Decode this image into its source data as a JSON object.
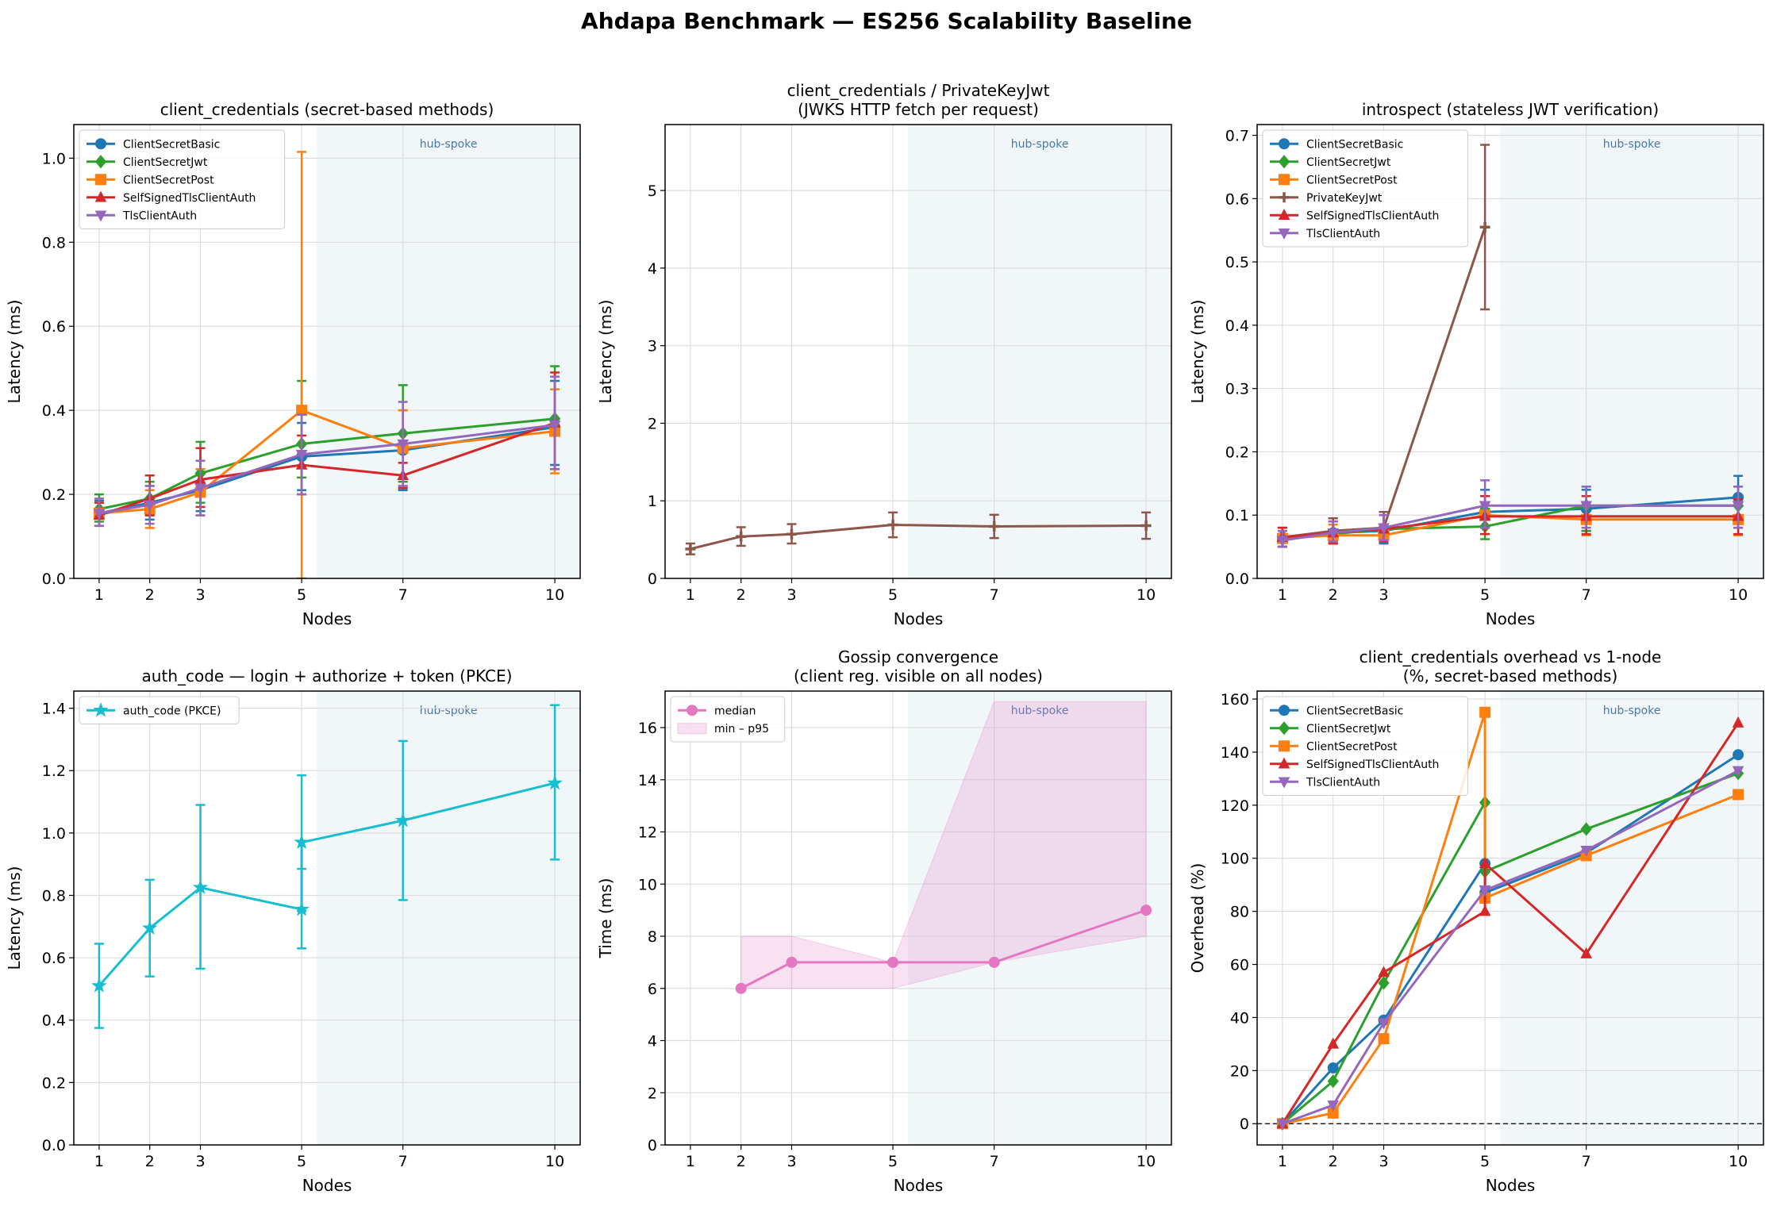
{
  "figure": {
    "title": "Ahdapa Benchmark — ES256 Scalability Baseline"
  },
  "colors": {
    "ClientSecretBasic": "#1f77b4",
    "ClientSecretJwt": "#2ca02c",
    "ClientSecretPost": "#ff7f0e",
    "SelfSignedTlsClientAuth": "#d62728",
    "TlsClientAuth": "#9467bd",
    "PrivateKeyJwt": "#8c564b",
    "auth_code": "#17becf",
    "gossip": "#e377c2",
    "region": "#e6eef3"
  },
  "chart_data": [
    {
      "type": "line",
      "title": "client_credentials (secret-based methods)",
      "xlabel": "Nodes",
      "ylabel": "Latency (ms)",
      "x": [
        1,
        2,
        3,
        5,
        7,
        10
      ],
      "xlim": [
        0.5,
        10.5
      ],
      "ylim": [
        0,
        1.08
      ],
      "yticks": [
        0.0,
        0.2,
        0.4,
        0.6,
        0.8,
        1.0
      ],
      "ytick_decimals": 1,
      "grid": true,
      "legend": "top-left",
      "region": {
        "from": 5.3,
        "to": 10.5,
        "label": "hub-spoke"
      },
      "series": [
        {
          "name": "ClientSecretBasic",
          "marker": "circle",
          "values": [
            0.155,
            0.18,
            0.21,
            0.29,
            0.305,
            0.36
          ],
          "err_low": [
            0.125,
            0.14,
            0.16,
            0.21,
            0.21,
            0.27
          ],
          "err_high": [
            0.185,
            0.22,
            0.26,
            0.37,
            0.4,
            0.47
          ]
        },
        {
          "name": "ClientSecretJwt",
          "marker": "diamond",
          "values": [
            0.165,
            0.19,
            0.25,
            0.32,
            0.345,
            0.38
          ],
          "err_low": [
            0.135,
            0.15,
            0.18,
            0.24,
            0.23,
            0.26
          ],
          "err_high": [
            0.2,
            0.23,
            0.325,
            0.47,
            0.46,
            0.505
          ]
        },
        {
          "name": "ClientSecretPost",
          "marker": "square",
          "values": [
            0.155,
            0.165,
            0.205,
            0.4,
            0.31,
            0.35
          ],
          "err_low": [
            0.125,
            0.12,
            0.15,
            0.0,
            0.22,
            0.25
          ],
          "err_high": [
            0.18,
            0.21,
            0.26,
            1.015,
            0.4,
            0.45
          ]
        },
        {
          "name": "SelfSignedTlsClientAuth",
          "marker": "triangle",
          "values": [
            0.15,
            0.19,
            0.235,
            0.27,
            0.245,
            0.37
          ],
          "err_low": [
            0.125,
            0.15,
            0.17,
            0.2,
            0.215,
            0.26
          ],
          "err_high": [
            0.18,
            0.245,
            0.31,
            0.34,
            0.275,
            0.49
          ]
        },
        {
          "name": "TlsClientAuth",
          "marker": "triangle-down",
          "values": [
            0.155,
            0.175,
            0.215,
            0.295,
            0.32,
            0.365
          ],
          "err_low": [
            0.125,
            0.13,
            0.15,
            0.2,
            0.22,
            0.26
          ],
          "err_high": [
            0.19,
            0.22,
            0.28,
            0.39,
            0.42,
            0.48
          ]
        }
      ]
    },
    {
      "type": "line",
      "title": "client_credentials / PrivateKeyJwt\n(JWKS HTTP fetch per request)",
      "xlabel": "Nodes",
      "ylabel": "Latency (ms)",
      "x": [
        1,
        2,
        3,
        5,
        7,
        10
      ],
      "xlim": [
        0.5,
        10.5
      ],
      "ylim": [
        0,
        5.85
      ],
      "yticks": [
        0,
        1,
        2,
        3,
        4,
        5
      ],
      "ytick_decimals": 0,
      "grid": true,
      "legend": "none",
      "region": {
        "from": 5.3,
        "to": 10.5,
        "label": "hub-spoke"
      },
      "series": [
        {
          "name": "PrivateKeyJwt",
          "marker": "plus",
          "values": [
            0.38,
            0.54,
            0.57,
            0.69,
            0.67,
            0.68
          ],
          "err_low": [
            0.31,
            0.42,
            0.45,
            0.53,
            0.52,
            0.51
          ],
          "err_high": [
            0.45,
            0.66,
            0.7,
            0.85,
            0.82,
            0.85
          ]
        }
      ]
    },
    {
      "type": "line",
      "title": "introspect (stateless JWT verification)",
      "xlabel": "Nodes",
      "ylabel": "Latency (ms)",
      "x": [
        1,
        2,
        3,
        5,
        7,
        10
      ],
      "xlim": [
        0.5,
        10.5
      ],
      "ylim": [
        0,
        0.717
      ],
      "yticks": [
        0.0,
        0.1,
        0.2,
        0.3,
        0.4,
        0.5,
        0.6,
        0.7
      ],
      "ytick_decimals": 1,
      "grid": true,
      "legend": "top-left",
      "region": {
        "from": 5.3,
        "to": 10.5,
        "label": "hub-spoke"
      },
      "series": [
        {
          "name": "ClientSecretBasic",
          "marker": "circle",
          "values": [
            0.065,
            0.072,
            0.075,
            0.105,
            0.11,
            0.128
          ],
          "err_low": [
            0.05,
            0.055,
            0.055,
            0.07,
            0.075,
            0.09
          ],
          "err_high": [
            0.08,
            0.095,
            0.1,
            0.14,
            0.14,
            0.162
          ]
        },
        {
          "name": "ClientSecretJwt",
          "marker": "diamond",
          "values": [
            0.063,
            0.07,
            0.078,
            0.082,
            0.115,
            0.115
          ],
          "err_low": [
            0.05,
            0.055,
            0.06,
            0.062,
            0.075,
            0.08
          ],
          "err_high": [
            0.08,
            0.09,
            0.1,
            0.11,
            0.145,
            0.145
          ]
        },
        {
          "name": "ClientSecretPost",
          "marker": "square",
          "values": [
            0.063,
            0.068,
            0.068,
            0.1,
            0.093,
            0.093
          ],
          "err_low": [
            0.05,
            0.055,
            0.058,
            0.07,
            0.068,
            0.068
          ],
          "err_high": [
            0.08,
            0.085,
            0.085,
            0.13,
            0.12,
            0.12
          ]
        },
        {
          "name": "PrivateKeyJwt",
          "marker": "plus",
          "values": [
            0.065,
            0.075,
            0.08,
            0.555,
            null,
            null
          ],
          "err_low": [
            0.05,
            0.058,
            0.06,
            0.425,
            null,
            null
          ],
          "err_high": [
            0.08,
            0.095,
            0.105,
            0.685,
            null,
            null
          ]
        },
        {
          "name": "SelfSignedTlsClientAuth",
          "marker": "triangle",
          "values": [
            0.065,
            0.072,
            0.078,
            0.098,
            0.098,
            0.098
          ],
          "err_low": [
            0.05,
            0.055,
            0.058,
            0.07,
            0.07,
            0.07
          ],
          "err_high": [
            0.08,
            0.09,
            0.1,
            0.13,
            0.13,
            0.125
          ]
        },
        {
          "name": "TlsClientAuth",
          "marker": "triangle-down",
          "values": [
            0.06,
            0.072,
            0.08,
            0.115,
            0.115,
            0.115
          ],
          "err_low": [
            0.05,
            0.058,
            0.06,
            0.08,
            0.08,
            0.08
          ],
          "err_high": [
            0.075,
            0.09,
            0.1,
            0.155,
            0.145,
            0.145
          ]
        }
      ]
    },
    {
      "type": "line",
      "title": "auth_code — login + authorize + token (PKCE)",
      "xlabel": "Nodes",
      "ylabel": "Latency (ms)",
      "x": [
        1,
        2,
        3,
        5,
        5,
        7,
        10
      ],
      "xlim": [
        0.5,
        10.5
      ],
      "ylim": [
        0,
        1.455
      ],
      "yticks": [
        0.0,
        0.2,
        0.4,
        0.6,
        0.8,
        1.0,
        1.2,
        1.4
      ],
      "ytick_decimals": 1,
      "grid": true,
      "legend": "top-left",
      "region": {
        "from": 5.3,
        "to": 10.5,
        "label": "hub-spoke"
      },
      "series": [
        {
          "name": "auth_code (PKCE)",
          "marker": "star",
          "values": [
            0.51,
            0.695,
            0.825,
            0.755,
            0.97,
            1.04,
            1.16
          ],
          "err_low": [
            0.375,
            0.54,
            0.565,
            0.63,
            0.75,
            0.785,
            0.915
          ],
          "err_high": [
            0.645,
            0.85,
            1.09,
            0.885,
            1.185,
            1.295,
            1.41
          ]
        }
      ]
    },
    {
      "type": "area",
      "title": "Gossip convergence\n(client reg. visible on all nodes)",
      "xlabel": "Nodes",
      "ylabel": "Time (ms)",
      "x": [
        1,
        2,
        3,
        5,
        7,
        10
      ],
      "xlim": [
        0.5,
        10.5
      ],
      "ylim": [
        0,
        17.4
      ],
      "yticks": [
        0,
        2,
        4,
        6,
        8,
        10,
        12,
        14,
        16
      ],
      "ytick_decimals": 0,
      "grid": true,
      "legend": "top-left",
      "region": {
        "from": 5.3,
        "to": 10.5,
        "label": "hub-spoke"
      },
      "series": [
        {
          "name": "median",
          "marker": "circle",
          "x": [
            2,
            3,
            5,
            7,
            10
          ],
          "values": [
            6,
            7,
            7,
            7,
            9
          ]
        }
      ],
      "band": {
        "name": "min – p95",
        "x": [
          2,
          3,
          5,
          7,
          10
        ],
        "low": [
          6,
          6,
          6,
          7,
          8
        ],
        "high": [
          8,
          8,
          7,
          17,
          17
        ]
      }
    },
    {
      "type": "line",
      "title": "client_credentials overhead vs 1-node\n(%, secret-based methods)",
      "xlabel": "Nodes",
      "ylabel": "Overhead (%)",
      "x": [
        1,
        2,
        3,
        5,
        5,
        7,
        10
      ],
      "xlim": [
        0.5,
        10.5
      ],
      "ylim": [
        -8,
        163
      ],
      "yticks": [
        0,
        20,
        40,
        60,
        80,
        100,
        120,
        140,
        160
      ],
      "ytick_decimals": 0,
      "grid": true,
      "legend": "top-left",
      "zero_line": true,
      "region": {
        "from": 5.3,
        "to": 10.5,
        "label": "hub-spoke"
      },
      "series": [
        {
          "name": "ClientSecretBasic",
          "marker": "circle",
          "values": [
            0,
            21,
            39,
            98,
            87,
            102,
            139
          ]
        },
        {
          "name": "ClientSecretJwt",
          "marker": "diamond",
          "values": [
            0,
            16,
            53,
            121,
            95,
            111,
            132
          ]
        },
        {
          "name": "ClientSecretPost",
          "marker": "square",
          "values": [
            0,
            4,
            32,
            155,
            85,
            101,
            124
          ]
        },
        {
          "name": "SelfSignedTlsClientAuth",
          "marker": "triangle",
          "values": [
            0,
            30,
            57,
            80,
            98,
            64,
            151
          ]
        },
        {
          "name": "TlsClientAuth",
          "marker": "triangle-down",
          "values": [
            0,
            7,
            38,
            88,
            88,
            103,
            133
          ]
        }
      ]
    }
  ]
}
